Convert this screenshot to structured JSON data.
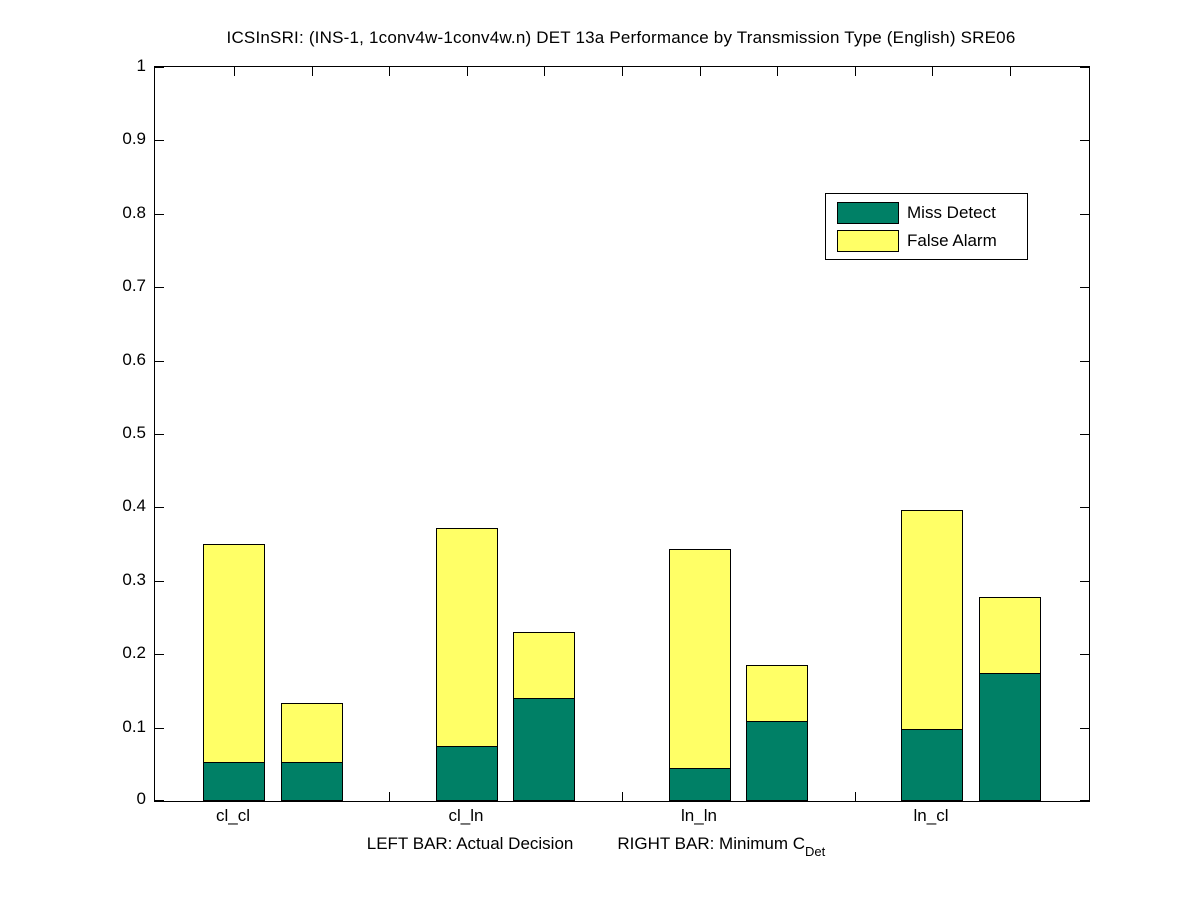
{
  "title": "ICSInSRI: (INS-1, 1conv4w-1conv4w.n) DET 13a Performance by Transmission Type (English) SRE06",
  "caption": {
    "left": "LEFT BAR: Actual Decision",
    "right": "RIGHT BAR: Minimum C",
    "sub": "Det"
  },
  "chart_data": {
    "type": "bar",
    "stacked": true,
    "orientation": "vertical",
    "grid": false,
    "ylim": [
      0,
      1
    ],
    "ytick_labels": [
      "0",
      "0.1",
      "0.2",
      "0.3",
      "0.4",
      "0.5",
      "0.6",
      "0.7",
      "0.8",
      "0.9",
      "1"
    ],
    "legend_position": "upper-right",
    "series": [
      {
        "name": "Miss Detect",
        "color": "#008066"
      },
      {
        "name": "False Alarm",
        "color": "#ffff66"
      }
    ],
    "bar_semantics": {
      "left_bar": "Actual Decision",
      "right_bar": "Minimum C_Det"
    },
    "categories": [
      "cl_cl",
      "cl_ln",
      "ln_ln",
      "ln_cl"
    ],
    "groups": [
      {
        "label": "cl_cl",
        "actual_decision": {
          "miss_detect": 0.052,
          "false_alarm": 0.298,
          "total": 0.35
        },
        "minimum_cdet": {
          "miss_detect": 0.052,
          "false_alarm": 0.081,
          "total": 0.133
        }
      },
      {
        "label": "cl_ln",
        "actual_decision": {
          "miss_detect": 0.073,
          "false_alarm": 0.299,
          "total": 0.372
        },
        "minimum_cdet": {
          "miss_detect": 0.139,
          "false_alarm": 0.091,
          "total": 0.23
        }
      },
      {
        "label": "ln_ln",
        "actual_decision": {
          "miss_detect": 0.043,
          "false_alarm": 0.3,
          "total": 0.343
        },
        "minimum_cdet": {
          "miss_detect": 0.107,
          "false_alarm": 0.078,
          "total": 0.185
        }
      },
      {
        "label": "ln_cl",
        "actual_decision": {
          "miss_detect": 0.097,
          "false_alarm": 0.299,
          "total": 0.396
        },
        "minimum_cdet": {
          "miss_detect": 0.173,
          "false_alarm": 0.105,
          "total": 0.278
        }
      }
    ]
  }
}
